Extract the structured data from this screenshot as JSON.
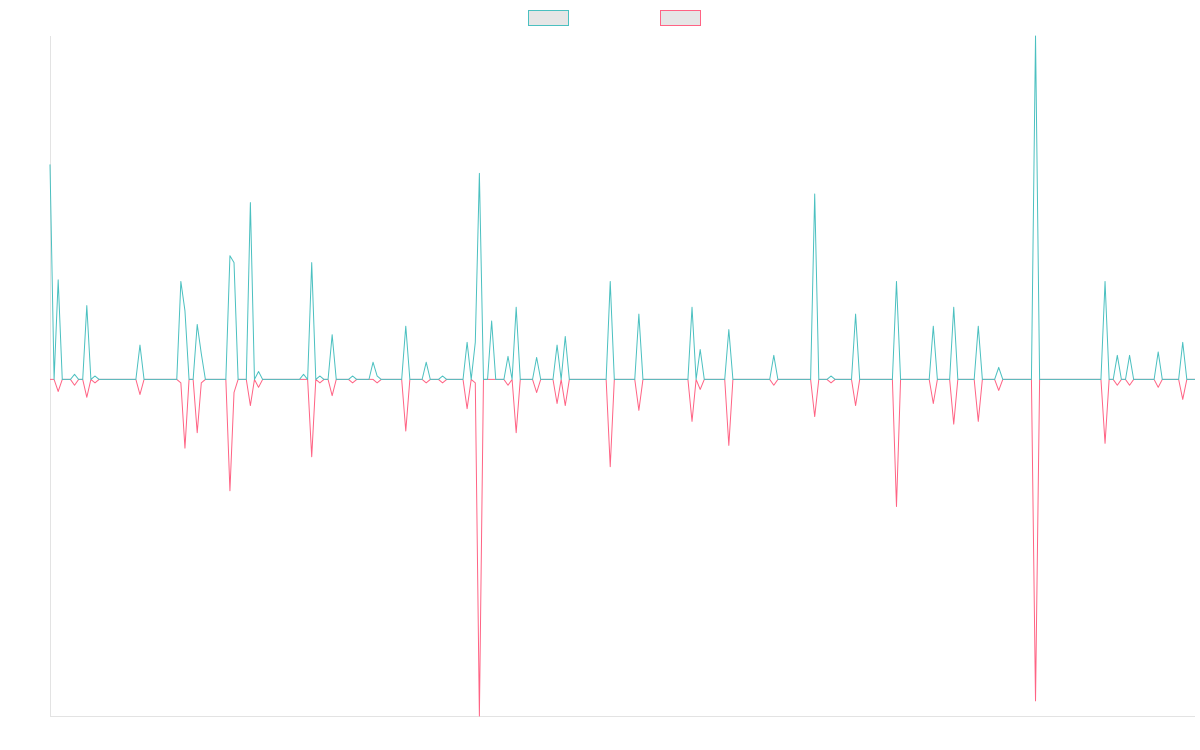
{
  "chart_data": {
    "type": "line",
    "ylim": [
      -98,
      100
    ],
    "series": [
      {
        "color": "#4bc0c0",
        "values": [
          62.6,
          0,
          29,
          0,
          0,
          0,
          1.5,
          0,
          0,
          21.5,
          0,
          1,
          0,
          0,
          0,
          0,
          0,
          0,
          0,
          0,
          0,
          0,
          10,
          0,
          0,
          0,
          0,
          0,
          0,
          0,
          0,
          0,
          28.5,
          20,
          0,
          0,
          16,
          7.5,
          0,
          0,
          0,
          0,
          0,
          0,
          36,
          34,
          0,
          0,
          0,
          51.5,
          0,
          2.3,
          0,
          0,
          0,
          0,
          0,
          0,
          0,
          0,
          0,
          0,
          1.5,
          0,
          34,
          0,
          1,
          0,
          0,
          13,
          0,
          0,
          0,
          0,
          1,
          0,
          0,
          0,
          0,
          5,
          1,
          0,
          0,
          0,
          0,
          0,
          0,
          15.5,
          0,
          0,
          0,
          0,
          5,
          0,
          0,
          0,
          1,
          0,
          0,
          0,
          0,
          0,
          10.8,
          0,
          10.8,
          60,
          0,
          0,
          17,
          0,
          0,
          0,
          6.7,
          0,
          21,
          0,
          0,
          0,
          0,
          6.4,
          0,
          0,
          0,
          0,
          10,
          0,
          12.5,
          0,
          0,
          0,
          0,
          0,
          0,
          0,
          0,
          0,
          0,
          28.5,
          0,
          0,
          0,
          0,
          0,
          0,
          19,
          0,
          0,
          0,
          0,
          0,
          0,
          0,
          0,
          0,
          0,
          0,
          0,
          21,
          0,
          8.7,
          0,
          0,
          0,
          0,
          0,
          0,
          14.5,
          0,
          0,
          0,
          0,
          0,
          0,
          0,
          0,
          0,
          0,
          7,
          0,
          0,
          0,
          0,
          0,
          0,
          0,
          0,
          0,
          54,
          0,
          0,
          0,
          1,
          0,
          0,
          0,
          0,
          0,
          19,
          0,
          0,
          0,
          0,
          0,
          0,
          0,
          0,
          0,
          28.5,
          0,
          0,
          0,
          0,
          0,
          0,
          0,
          0,
          15.5,
          0,
          0,
          0,
          0,
          21,
          0,
          0,
          0,
          0,
          0,
          15.5,
          0,
          0,
          0,
          0,
          3.5,
          0,
          0,
          0,
          0,
          0,
          0,
          0,
          0,
          100,
          0,
          0,
          0,
          0,
          0,
          0,
          0,
          0,
          0,
          0,
          0,
          0,
          0,
          0,
          0,
          0,
          28.5,
          0,
          0,
          7,
          0,
          0,
          7,
          0,
          0,
          0,
          0,
          0,
          0,
          8,
          0,
          0,
          0,
          0,
          0,
          10.8,
          0,
          0,
          0
        ]
      },
      {
        "color": "#ff6384",
        "values": [
          0,
          0,
          -3.5,
          0,
          0,
          0,
          -1.7,
          0,
          0,
          -5.2,
          0,
          -1,
          0,
          0,
          0,
          0,
          0,
          0,
          0,
          0,
          0,
          0,
          -4.4,
          0,
          0,
          0,
          0,
          0,
          0,
          0,
          0,
          0,
          -1,
          -20,
          0,
          0,
          -15.5,
          -1,
          0,
          0,
          0,
          0,
          0,
          0,
          -32.4,
          -3.8,
          0,
          0,
          0,
          -7.6,
          0,
          -2.3,
          0,
          0,
          0,
          0,
          0,
          0,
          0,
          0,
          0,
          0,
          0,
          0,
          -22.5,
          0,
          -1,
          0,
          0,
          -4.7,
          0,
          0,
          0,
          0,
          -1,
          0,
          0,
          0,
          0,
          0,
          -1,
          0,
          0,
          0,
          0,
          0,
          0,
          -15,
          0,
          0,
          0,
          0,
          -1,
          0,
          0,
          0,
          -1,
          0,
          0,
          0,
          0,
          0,
          -8.5,
          0,
          -1,
          -98,
          0,
          0,
          0,
          0,
          0,
          0,
          -1.7,
          0,
          -15.5,
          0,
          0,
          0,
          0,
          -3.8,
          0,
          0,
          0,
          0,
          -7,
          0,
          -7.6,
          0,
          0,
          0,
          0,
          0,
          0,
          0,
          0,
          0,
          0,
          -25.4,
          0,
          0,
          0,
          0,
          0,
          0,
          -9,
          0,
          0,
          0,
          0,
          0,
          0,
          0,
          0,
          0,
          0,
          0,
          0,
          -12.2,
          0,
          -2.9,
          0,
          0,
          0,
          0,
          0,
          0,
          -19.2,
          0,
          0,
          0,
          0,
          0,
          0,
          0,
          0,
          0,
          0,
          -1.7,
          0,
          0,
          0,
          0,
          0,
          0,
          0,
          0,
          0,
          -10.8,
          0,
          0,
          0,
          -1,
          0,
          0,
          0,
          0,
          0,
          -7.6,
          0,
          0,
          0,
          0,
          0,
          0,
          0,
          0,
          0,
          -37,
          0,
          0,
          0,
          0,
          0,
          0,
          0,
          0,
          -7,
          0,
          0,
          0,
          0,
          -13,
          0,
          0,
          0,
          0,
          0,
          -12.2,
          0,
          0,
          0,
          0,
          -3.2,
          0,
          0,
          0,
          0,
          0,
          0,
          0,
          0,
          -93.6,
          0,
          0,
          0,
          0,
          0,
          0,
          0,
          0,
          0,
          0,
          0,
          0,
          0,
          0,
          0,
          0,
          -18.6,
          0,
          0,
          -1.7,
          0,
          0,
          -1.7,
          0,
          0,
          0,
          0,
          0,
          0,
          -2.3,
          0,
          0,
          0,
          0,
          0,
          -5.8,
          0,
          0,
          0
        ]
      }
    ]
  }
}
